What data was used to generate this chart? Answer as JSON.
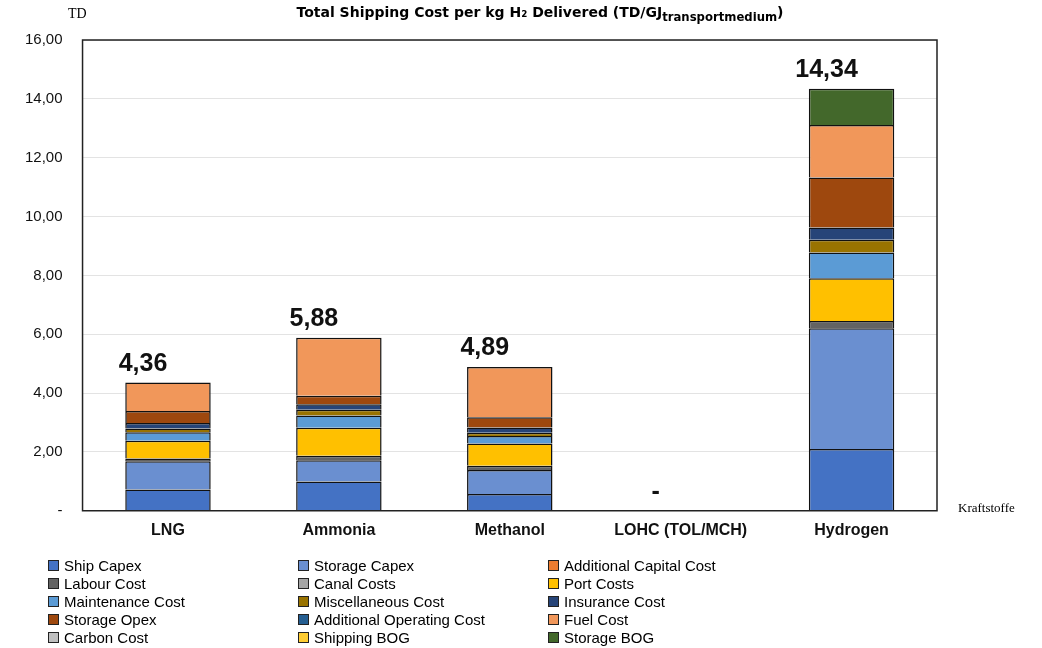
{
  "chart_data": {
    "type": "bar",
    "stacked": true,
    "title": "Total Shipping Cost per kg H₂ Delivered (TD/GJ$_{transportmedium}$)",
    "ylabel": "TD",
    "xlabel": "Kraftstoffe",
    "categories": [
      "LNG",
      "Ammonia",
      "Methanol",
      "LOHC (TOL/MCH)",
      "Hydrogen"
    ],
    "series": [
      {
        "name": "Ship Capex",
        "color": "#4472c4",
        "values": [
          0.72,
          1.0,
          0.57,
          null,
          2.1
        ]
      },
      {
        "name": "Storage Capex",
        "color": "#6a8fd0",
        "values": [
          0.96,
          0.72,
          0.82,
          null,
          4.1
        ]
      },
      {
        "name": "Additional Capital Cost",
        "color": "#ed7d31",
        "values": [
          null,
          null,
          null,
          null,
          null
        ]
      },
      {
        "name": "Labour Cost",
        "color": "#636363",
        "values": [
          0.1,
          0.15,
          0.14,
          null,
          0.25
        ]
      },
      {
        "name": "Canal Costs",
        "color": "#a5a5a5",
        "values": [
          null,
          null,
          null,
          null,
          null
        ]
      },
      {
        "name": "Port Costs",
        "color": "#ffc000",
        "values": [
          0.6,
          0.95,
          0.76,
          null,
          1.45
        ]
      },
      {
        "name": "Maintenance Cost",
        "color": "#5b9bd5",
        "values": [
          0.29,
          0.42,
          0.25,
          null,
          0.88
        ]
      },
      {
        "name": "Miscellaneous Cost",
        "color": "#997300",
        "values": [
          0.13,
          0.19,
          0.11,
          null,
          0.43
        ]
      },
      {
        "name": "Insurance Cost",
        "color": "#264478",
        "values": [
          0.18,
          0.19,
          0.18,
          null,
          0.42
        ]
      },
      {
        "name": "Storage Opex",
        "color": "#9e480e",
        "values": [
          0.41,
          0.29,
          0.35,
          null,
          1.7
        ]
      },
      {
        "name": "Additional Operating Cost",
        "color": "#255e91",
        "values": [
          null,
          null,
          null,
          null,
          null
        ]
      },
      {
        "name": "Fuel Cost",
        "color": "#f1975a",
        "values": [
          0.97,
          1.97,
          1.71,
          null,
          1.78
        ]
      },
      {
        "name": "Carbon Cost",
        "color": "#bfbfbf",
        "values": [
          null,
          null,
          null,
          null,
          null
        ]
      },
      {
        "name": "Shipping BOG",
        "color": "#ffcd33",
        "values": [
          null,
          null,
          null,
          null,
          null
        ]
      },
      {
        "name": "Storage BOG",
        "color": "#43682b",
        "values": [
          null,
          null,
          null,
          null,
          1.23
        ]
      }
    ],
    "totals": [
      "4,36",
      "5,88",
      "4,89",
      "-",
      "14,34"
    ],
    "ylim": [
      0,
      16
    ],
    "yticks": [
      {
        "value": 0,
        "label": "-"
      },
      {
        "value": 2,
        "label": "2,00"
      },
      {
        "value": 4,
        "label": "4,00"
      },
      {
        "value": 6,
        "label": "6,00"
      },
      {
        "value": 8,
        "label": "8,00"
      },
      {
        "value": 10,
        "label": "10,00"
      },
      {
        "value": 12,
        "label": "12,00"
      },
      {
        "value": 14,
        "label": "14,00"
      },
      {
        "value": 16,
        "label": "16,00"
      }
    ],
    "grid": "y",
    "legend": "bottom"
  }
}
